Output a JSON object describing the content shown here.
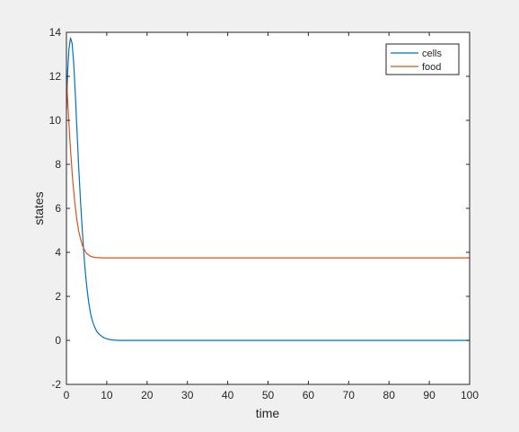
{
  "chart_data": {
    "type": "line",
    "title": "",
    "xlabel": "time",
    "ylabel": "states",
    "xlim": [
      0,
      100
    ],
    "ylim": [
      -2,
      14
    ],
    "xticks": [
      0,
      10,
      20,
      30,
      40,
      50,
      60,
      70,
      80,
      90,
      100
    ],
    "yticks": [
      -2,
      0,
      2,
      4,
      6,
      8,
      10,
      12,
      14
    ],
    "grid": false,
    "legend_position": "top-right",
    "series": [
      {
        "name": "cells",
        "color": "#0072bd",
        "x": [
          0,
          0.3,
          0.6,
          1.0,
          1.4,
          1.8,
          2.2,
          2.6,
          3.0,
          3.5,
          4.0,
          4.5,
          5.0,
          5.5,
          6.0,
          6.5,
          7.0,
          7.5,
          8.0,
          9.0,
          10.0,
          11.0,
          12.0,
          13.0,
          15.0,
          20.0,
          100.0
        ],
        "y": [
          10.5,
          12.2,
          13.2,
          13.75,
          13.5,
          12.6,
          11.2,
          9.6,
          8.0,
          6.3,
          4.8,
          3.5,
          2.5,
          1.75,
          1.2,
          0.85,
          0.6,
          0.42,
          0.3,
          0.15,
          0.07,
          0.03,
          0.01,
          0.0,
          0.0,
          0.0,
          0.0
        ]
      },
      {
        "name": "food",
        "color": "#d95319",
        "x": [
          0,
          0.3,
          0.6,
          1.0,
          1.5,
          2.0,
          2.5,
          3.0,
          3.5,
          4.0,
          4.5,
          5.0,
          6.0,
          7.0,
          8.0,
          9.0,
          10.0,
          12.0,
          15.0,
          100.0
        ],
        "y": [
          12.0,
          10.9,
          9.9,
          8.7,
          7.4,
          6.4,
          5.6,
          5.0,
          4.6,
          4.3,
          4.1,
          3.95,
          3.82,
          3.77,
          3.76,
          3.75,
          3.75,
          3.75,
          3.75,
          3.75
        ]
      }
    ]
  }
}
